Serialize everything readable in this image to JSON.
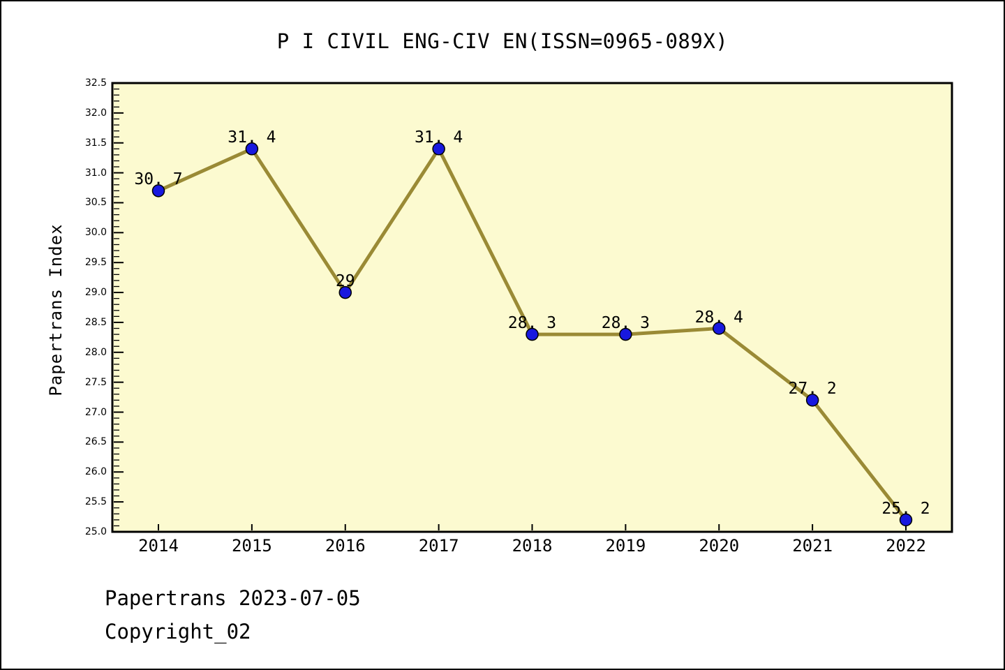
{
  "chart_data": {
    "type": "line",
    "title": "P I CIVIL ENG-CIV EN(ISSN=0965-089X)",
    "ylabel": "Papertrans Index",
    "xlabel": "",
    "categories": [
      "2014",
      "2015",
      "2016",
      "2017",
      "2018",
      "2019",
      "2020",
      "2021",
      "2022"
    ],
    "values": [
      30.7,
      31.4,
      29,
      31.4,
      28.3,
      28.3,
      28.4,
      27.2,
      25.2
    ],
    "point_labels": [
      "30. 7",
      "31. 4",
      "29",
      "31. 4",
      "28. 3",
      "28. 3",
      "28. 4",
      "27. 2",
      "25. 2"
    ],
    "ylim": [
      25.0,
      32.5
    ],
    "y_major_step": 0.5,
    "y_minor_step": 0.1,
    "y_tick_decimals": 1,
    "grid": false,
    "legend_position": "none",
    "colors": {
      "line": "#9A8A35",
      "marker": "#1818DF",
      "marker_edge": "#000000",
      "plot_background": "#FCFAD0",
      "axis": "#000000",
      "text": "#000000",
      "figure_background": "#FFFFFF"
    }
  },
  "footer": {
    "line1": "Papertrans 2023-07-05",
    "line2": "Copyright_02"
  }
}
